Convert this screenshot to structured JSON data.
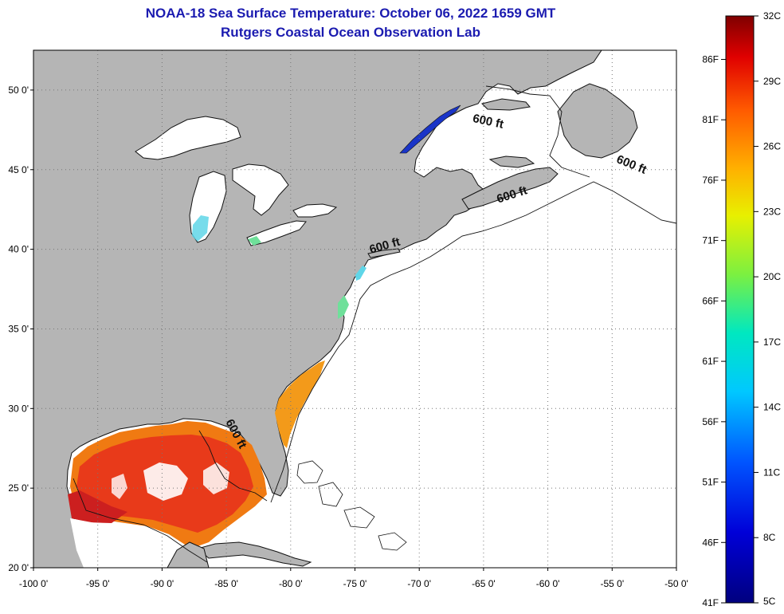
{
  "header": {
    "title": "NOAA-18 Sea Surface Temperature:  October 06, 2022 1659 GMT",
    "subtitle": "Rutgers Coastal Ocean Observation Lab"
  },
  "map": {
    "lon_range": [
      -100,
      -50
    ],
    "lat_range": [
      20,
      52.5
    ],
    "lat_ticks": [
      {
        "value": 20,
        "label": "20 0'"
      },
      {
        "value": 25,
        "label": "25 0'"
      },
      {
        "value": 30,
        "label": "30 0'"
      },
      {
        "value": 35,
        "label": "35 0'"
      },
      {
        "value": 40,
        "label": "40 0'"
      },
      {
        "value": 45,
        "label": "45 0'"
      },
      {
        "value": 50,
        "label": "50 0'"
      }
    ],
    "lon_ticks": [
      {
        "value": -100,
        "label": "-100 0'"
      },
      {
        "value": -95,
        "label": "-95 0'"
      },
      {
        "value": -90,
        "label": "-90 0'"
      },
      {
        "value": -85,
        "label": "-85 0'"
      },
      {
        "value": -80,
        "label": "-80 0'"
      },
      {
        "value": -75,
        "label": "-75 0'"
      },
      {
        "value": -70,
        "label": "-70 0'"
      },
      {
        "value": -65,
        "label": "-65 0'"
      },
      {
        "value": -60,
        "label": "-60 0'"
      },
      {
        "value": -55,
        "label": "-55 0'"
      },
      {
        "value": -50,
        "label": "-50 0'"
      }
    ],
    "isobath_labels": [
      {
        "text": "600 ft",
        "lon": -64.7,
        "lat": 47.8,
        "rot": 12
      },
      {
        "text": "600 ft",
        "lon": -53.6,
        "lat": 45.1,
        "rot": 22
      },
      {
        "text": "600 ft",
        "lon": -62.7,
        "lat": 43.2,
        "rot": -18
      },
      {
        "text": "600 ft",
        "lon": -72.6,
        "lat": 40.0,
        "rot": -16
      },
      {
        "text": "600 ft",
        "lon": -84.5,
        "lat": 28.3,
        "rot": 62
      }
    ],
    "colors": {
      "land": "#b5b5b5",
      "ocean": "#ffffff",
      "gulf_warm": "#e83a1a",
      "gulf_hot": "#cc1f1f",
      "gulf_edge": "#f07a12",
      "atlantic_coastal": "#f39a1a",
      "st_lawrence": "#1a35c8",
      "lake_cyan": "#5fd6e8",
      "bay_green": "#6fe09a"
    }
  },
  "colorbar": {
    "celsius": [
      {
        "value": 32,
        "label": "32C"
      },
      {
        "value": 29,
        "label": "29C"
      },
      {
        "value": 26,
        "label": "26C"
      },
      {
        "value": 23,
        "label": "23C"
      },
      {
        "value": 20,
        "label": "20C"
      },
      {
        "value": 17,
        "label": "17C"
      },
      {
        "value": 14,
        "label": "14C"
      },
      {
        "value": 11,
        "label": "11C"
      },
      {
        "value": 8,
        "label": "8C"
      },
      {
        "value": 5,
        "label": "5C"
      }
    ],
    "fahrenheit": [
      {
        "value": 86,
        "label": "86F"
      },
      {
        "value": 81,
        "label": "81F"
      },
      {
        "value": 76,
        "label": "76F"
      },
      {
        "value": 71,
        "label": "71F"
      },
      {
        "value": 66,
        "label": "66F"
      },
      {
        "value": 61,
        "label": "61F"
      },
      {
        "value": 56,
        "label": "56F"
      },
      {
        "value": 51,
        "label": "51F"
      },
      {
        "value": 46,
        "label": "46F"
      },
      {
        "value": 41,
        "label": "41F"
      }
    ]
  }
}
